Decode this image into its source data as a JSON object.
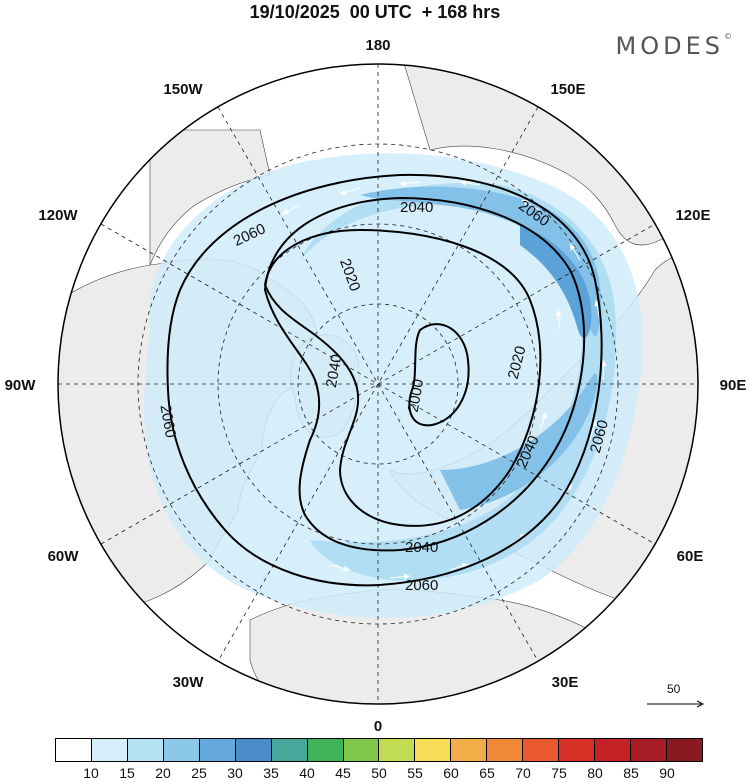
{
  "header": {
    "title": "19/10/2025  00 UTC  + 168 hrs",
    "brand": "MODES",
    "brand_mark": "©"
  },
  "map": {
    "projection": "north-polar-stereographic",
    "longitude_labels": {
      "top": "180",
      "top_right": "150E",
      "right_upper": "120E",
      "right": "90E",
      "right_lower": "60E",
      "bottom_right": "30E",
      "bottom": "0",
      "bottom_left": "30W",
      "left_lower": "60W",
      "left": "90W",
      "left_upper": "120W",
      "top_left": "150W"
    },
    "contour_labels": [
      "2060",
      "2040",
      "2060",
      "2020",
      "2040",
      "2060",
      "2000",
      "2020",
      "2040",
      "2060",
      "2040",
      "2060"
    ],
    "wind_reference": "50",
    "colors": {
      "land": "#ececec",
      "ocean": "#ffffff",
      "contour": "#000000",
      "speed_15": "#cfecf9",
      "speed_20": "#aedcf3",
      "speed_25": "#84c1e8",
      "speed_30": "#5ba2d9"
    }
  },
  "legend": {
    "ticks": [
      "10",
      "15",
      "20",
      "25",
      "30",
      "35",
      "40",
      "45",
      "50",
      "55",
      "60",
      "65",
      "70",
      "75",
      "80",
      "85",
      "90"
    ],
    "colors": [
      "#ffffff",
      "#d6f0fb",
      "#b5e1f5",
      "#8cc8ea",
      "#64a8dc",
      "#4b8dc8",
      "#46a89b",
      "#3fb35a",
      "#7fc84c",
      "#c1dc53",
      "#f7dd57",
      "#f2ac48",
      "#ef8936",
      "#e85a2d",
      "#d83228",
      "#c42227",
      "#a81c26",
      "#8a1a20"
    ]
  }
}
